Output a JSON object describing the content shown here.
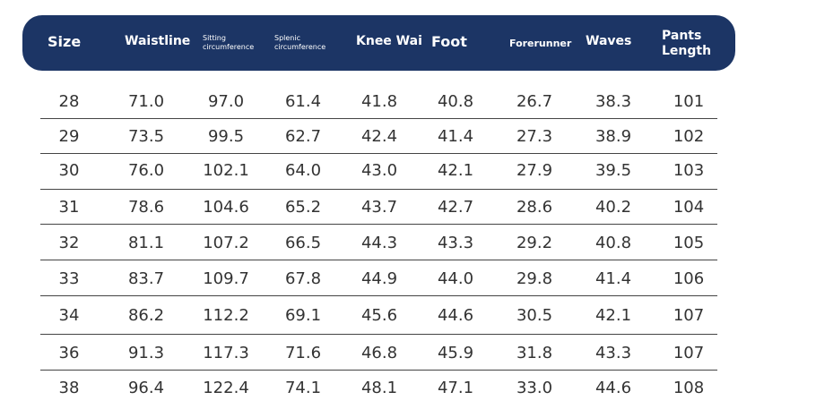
{
  "table": {
    "header": [
      "Size",
      "Waistline",
      "Sitting circumference",
      "Splenic circumference",
      "Knee Wai",
      "Foot",
      "Forerunner",
      "Waves",
      "Pants Length"
    ],
    "rows": [
      [
        "28",
        "71.0",
        "97.0",
        "61.4",
        "41.8",
        "40.8",
        "26.7",
        "38.3",
        "101"
      ],
      [
        "29",
        "73.5",
        "99.5",
        "62.7",
        "42.4",
        "41.4",
        "27.3",
        "38.9",
        "102"
      ],
      [
        "30",
        "76.0",
        "102.1",
        "64.0",
        "43.0",
        "42.1",
        "27.9",
        "39.5",
        "103"
      ],
      [
        "31",
        "78.6",
        "104.6",
        "65.2",
        "43.7",
        "42.7",
        "28.6",
        "40.2",
        "104"
      ],
      [
        "32",
        "81.1",
        "107.2",
        "66.5",
        "44.3",
        "43.3",
        "29.2",
        "40.8",
        "105"
      ],
      [
        "33",
        "83.7",
        "109.7",
        "67.8",
        "44.9",
        "44.0",
        "29.8",
        "41.4",
        "106"
      ],
      [
        "34",
        "86.2",
        "112.2",
        "69.1",
        "45.6",
        "44.6",
        "30.5",
        "42.1",
        "107"
      ],
      [
        "36",
        "91.3",
        "117.3",
        "71.6",
        "46.8",
        "45.9",
        "31.8",
        "43.3",
        "107"
      ],
      [
        "38",
        "96.4",
        "122.4",
        "74.1",
        "48.1",
        "47.1",
        "33.0",
        "44.6",
        "108"
      ]
    ]
  }
}
